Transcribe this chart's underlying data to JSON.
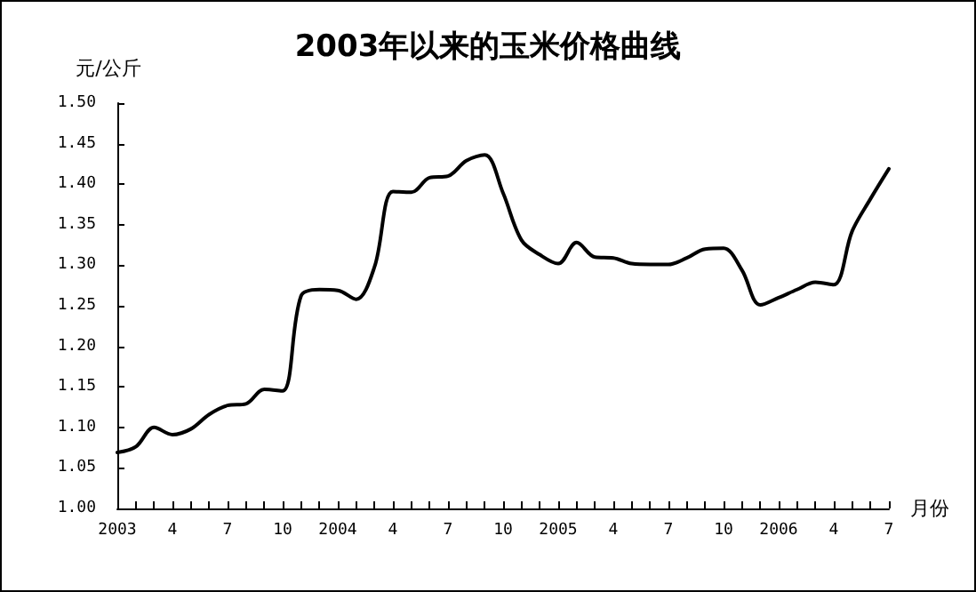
{
  "chart_data": {
    "type": "line",
    "title": "2003年以来的玉米价格曲线",
    "ylabel": "元/公斤",
    "xlabel": "月份",
    "categories": [
      "2003",
      null,
      null,
      "4",
      null,
      null,
      "7",
      null,
      null,
      "10",
      null,
      null,
      "2004",
      null,
      null,
      "4",
      null,
      null,
      "7",
      null,
      null,
      "10",
      null,
      null,
      "2005",
      null,
      null,
      "4",
      null,
      null,
      "7",
      null,
      null,
      "10",
      null,
      null,
      "2006",
      null,
      null,
      "4",
      null,
      null,
      "7"
    ],
    "series": [
      {
        "color": "#000000",
        "values": [
          1.069,
          1.076,
          1.1,
          1.091,
          1.098,
          1.116,
          1.127,
          1.129,
          1.147,
          1.145,
          1.262,
          1.27,
          1.269,
          1.258,
          1.298,
          1.391,
          1.39,
          1.408,
          1.41,
          1.429,
          1.436,
          1.389,
          1.331,
          1.313,
          1.302,
          1.328,
          1.31,
          1.309,
          1.302,
          1.301,
          1.301,
          1.309,
          1.32,
          1.321,
          1.294,
          1.251,
          1.26,
          1.27,
          1.279,
          1.276,
          1.342,
          1.382,
          1.419
        ]
      }
    ],
    "ylim": [
      1.0,
      1.5
    ],
    "yticks": [
      {
        "value": 1.0,
        "label": "1.00"
      },
      1.05,
      {
        "value": 1.1,
        "label": "1.10"
      },
      1.15,
      {
        "value": 1.2,
        "label": "1.20"
      },
      1.25,
      {
        "value": 1.3,
        "label": "1.30"
      },
      1.35,
      {
        "value": 1.4,
        "label": "1.40"
      },
      1.45,
      {
        "value": 1.5,
        "label": "1.50"
      }
    ],
    "grid": false,
    "marker": "none",
    "line_style": "solid"
  }
}
